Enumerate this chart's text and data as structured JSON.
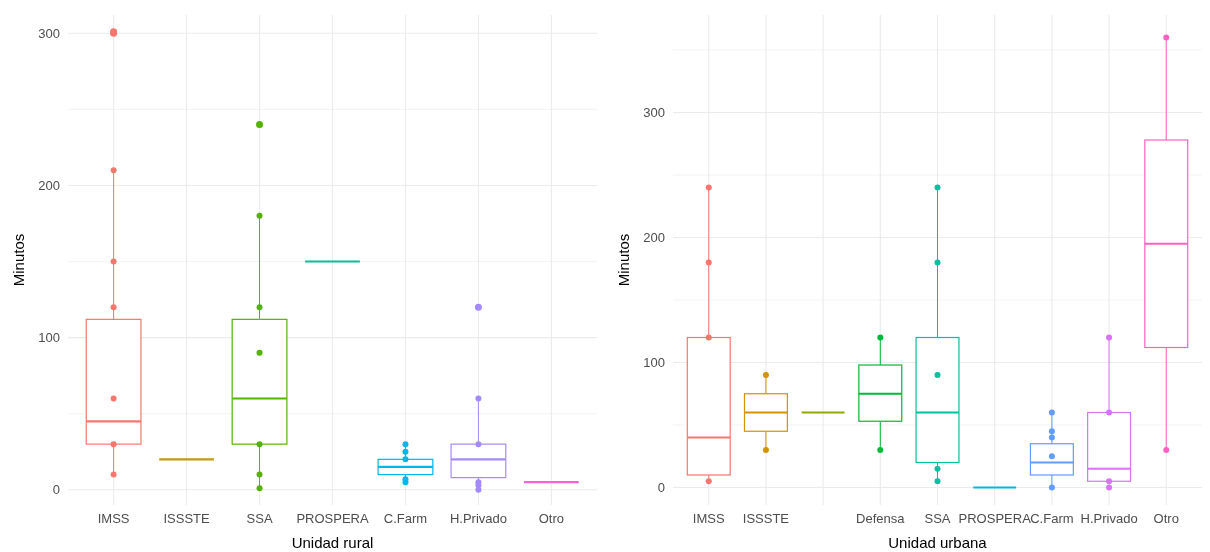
{
  "chart_data": [
    {
      "type": "box",
      "xlabel": "Unidad rural",
      "ylabel": "Minutos",
      "categories": [
        "IMSS",
        "ISSSTE",
        "SSA",
        "PROSPERA",
        "C.Farm",
        "H.Privado",
        "Otro"
      ],
      "ylim": [
        -10,
        312
      ],
      "yticks": [
        0,
        {
          "value": 50,
          "label": null
        },
        100,
        {
          "value": 150,
          "label": null
        },
        200,
        {
          "value": 250,
          "label": null
        },
        300
      ],
      "grid": true,
      "marker": "circle",
      "series": [
        {
          "type": "box",
          "colors": [
            "#f8766d",
            "#c49a00",
            "#53b400",
            "#00c094",
            "#00b6eb",
            "#a58aff",
            "#fb61d7"
          ],
          "boxes": [
            {
              "low": 10,
              "q1": 30,
              "median": 45,
              "q3": 112,
              "high": 210,
              "outliers": [
                300,
                301
              ]
            },
            {
              "low": 20,
              "q1": 20,
              "median": 20,
              "q3": 20,
              "high": 20
            },
            {
              "low": 1,
              "q1": 30,
              "median": 60,
              "q3": 112,
              "high": 180,
              "outliers": [
                240
              ]
            },
            {
              "low": 150,
              "q1": 150,
              "median": 150,
              "q3": 150,
              "high": 150
            },
            {
              "low": 5,
              "q1": 10,
              "median": 15,
              "q3": 20,
              "high": 30
            },
            {
              "low": 2,
              "q1": 8,
              "median": 20,
              "q3": 30,
              "high": 60,
              "outliers": [
                120
              ]
            },
            {
              "low": 5,
              "q1": 5,
              "median": 5,
              "q3": 5,
              "high": 5
            }
          ]
        },
        {
          "type": "scatter",
          "color": "#f8766d",
          "x": [
            "IMSS",
            "IMSS",
            "IMSS",
            "IMSS",
            "IMSS",
            "IMSS"
          ],
          "values": [
            210,
            150,
            120,
            60,
            30,
            10
          ]
        },
        {
          "type": "scatter",
          "color": "#53b400",
          "x": [
            "SSA",
            "SSA",
            "SSA",
            "SSA",
            "SSA",
            "SSA"
          ],
          "values": [
            180,
            120,
            90,
            30,
            10,
            1
          ]
        },
        {
          "type": "scatter",
          "color": "#00b6eb",
          "x": [
            "C.Farm",
            "C.Farm",
            "C.Farm",
            "C.Farm",
            "C.Farm"
          ],
          "values": [
            30,
            25,
            20,
            7,
            5
          ]
        },
        {
          "type": "scatter",
          "color": "#a58aff",
          "x": [
            "H.Privado",
            "H.Privado",
            "H.Privado",
            "H.Privado",
            "H.Privado"
          ],
          "values": [
            60,
            30,
            5,
            3,
            0
          ]
        }
      ]
    },
    {
      "type": "box",
      "xlabel": "Unidad urbana",
      "ylabel": "Minutos",
      "categories": [
        "IMSS",
        "ISSSTE",
        null,
        "Defensa",
        "SSA",
        "PROSPERA",
        "C.Farm",
        "H.Privado",
        "Otro"
      ],
      "ylim": [
        -14,
        378
      ],
      "yticks": [
        0,
        {
          "value": 50,
          "label": null
        },
        100,
        {
          "value": 150,
          "label": null
        },
        200,
        {
          "value": 250,
          "label": null
        },
        300,
        {
          "value": 350,
          "label": null
        }
      ],
      "grid": true,
      "marker": "circle",
      "series": [
        {
          "type": "box",
          "colors": [
            "#f8766d",
            "#d39200",
            "#93aa00",
            "#00ba38",
            "#00c19f",
            "#00b9e3",
            "#619cff",
            "#db72fb",
            "#ff61c3"
          ],
          "boxes": [
            {
              "low": 5,
              "q1": 10,
              "median": 40,
              "q3": 120,
              "high": 240
            },
            {
              "low": 30,
              "q1": 45,
              "median": 60,
              "q3": 75,
              "high": 90
            },
            {
              "low": 60,
              "q1": 60,
              "median": 60,
              "q3": 60,
              "high": 60
            },
            {
              "low": 30,
              "q1": 53,
              "median": 75,
              "q3": 98,
              "high": 120
            },
            {
              "low": 5,
              "q1": 20,
              "median": 60,
              "q3": 120,
              "high": 240
            },
            {
              "low": 0,
              "q1": 0,
              "median": 0,
              "q3": 0,
              "high": 0
            },
            {
              "low": 0,
              "q1": 10,
              "median": 20,
              "q3": 35,
              "high": 60
            },
            {
              "low": 5,
              "q1": 5,
              "median": 15,
              "q3": 60,
              "high": 120
            },
            {
              "low": 30,
              "q1": 112,
              "median": 195,
              "q3": 278,
              "high": 360
            }
          ]
        },
        {
          "type": "scatter",
          "color": "#f8766d",
          "x": [
            "IMSS",
            "IMSS",
            "IMSS",
            "IMSS"
          ],
          "values": [
            240,
            180,
            120,
            5
          ]
        },
        {
          "type": "scatter",
          "color": "#d39200",
          "x": [
            "ISSSTE",
            "ISSSTE"
          ],
          "values": [
            90,
            30
          ]
        },
        {
          "type": "scatter",
          "color": "#00ba38",
          "x": [
            "Defensa",
            "Defensa"
          ],
          "values": [
            120,
            30
          ]
        },
        {
          "type": "scatter",
          "color": "#00c19f",
          "x": [
            "SSA",
            "SSA",
            "SSA",
            "SSA",
            "SSA"
          ],
          "values": [
            240,
            180,
            90,
            15,
            5
          ]
        },
        {
          "type": "scatter",
          "color": "#619cff",
          "x": [
            "C.Farm",
            "C.Farm",
            "C.Farm",
            "C.Farm",
            "C.Farm"
          ],
          "values": [
            60,
            45,
            40,
            25,
            0
          ]
        },
        {
          "type": "scatter",
          "color": "#db72fb",
          "x": [
            "H.Privado",
            "H.Privado",
            "H.Privado",
            "H.Privado"
          ],
          "values": [
            120,
            60,
            5,
            0
          ]
        },
        {
          "type": "scatter",
          "color": "#ff61c3",
          "x": [
            "Otro",
            "Otro"
          ],
          "values": [
            360,
            30
          ]
        }
      ]
    }
  ]
}
